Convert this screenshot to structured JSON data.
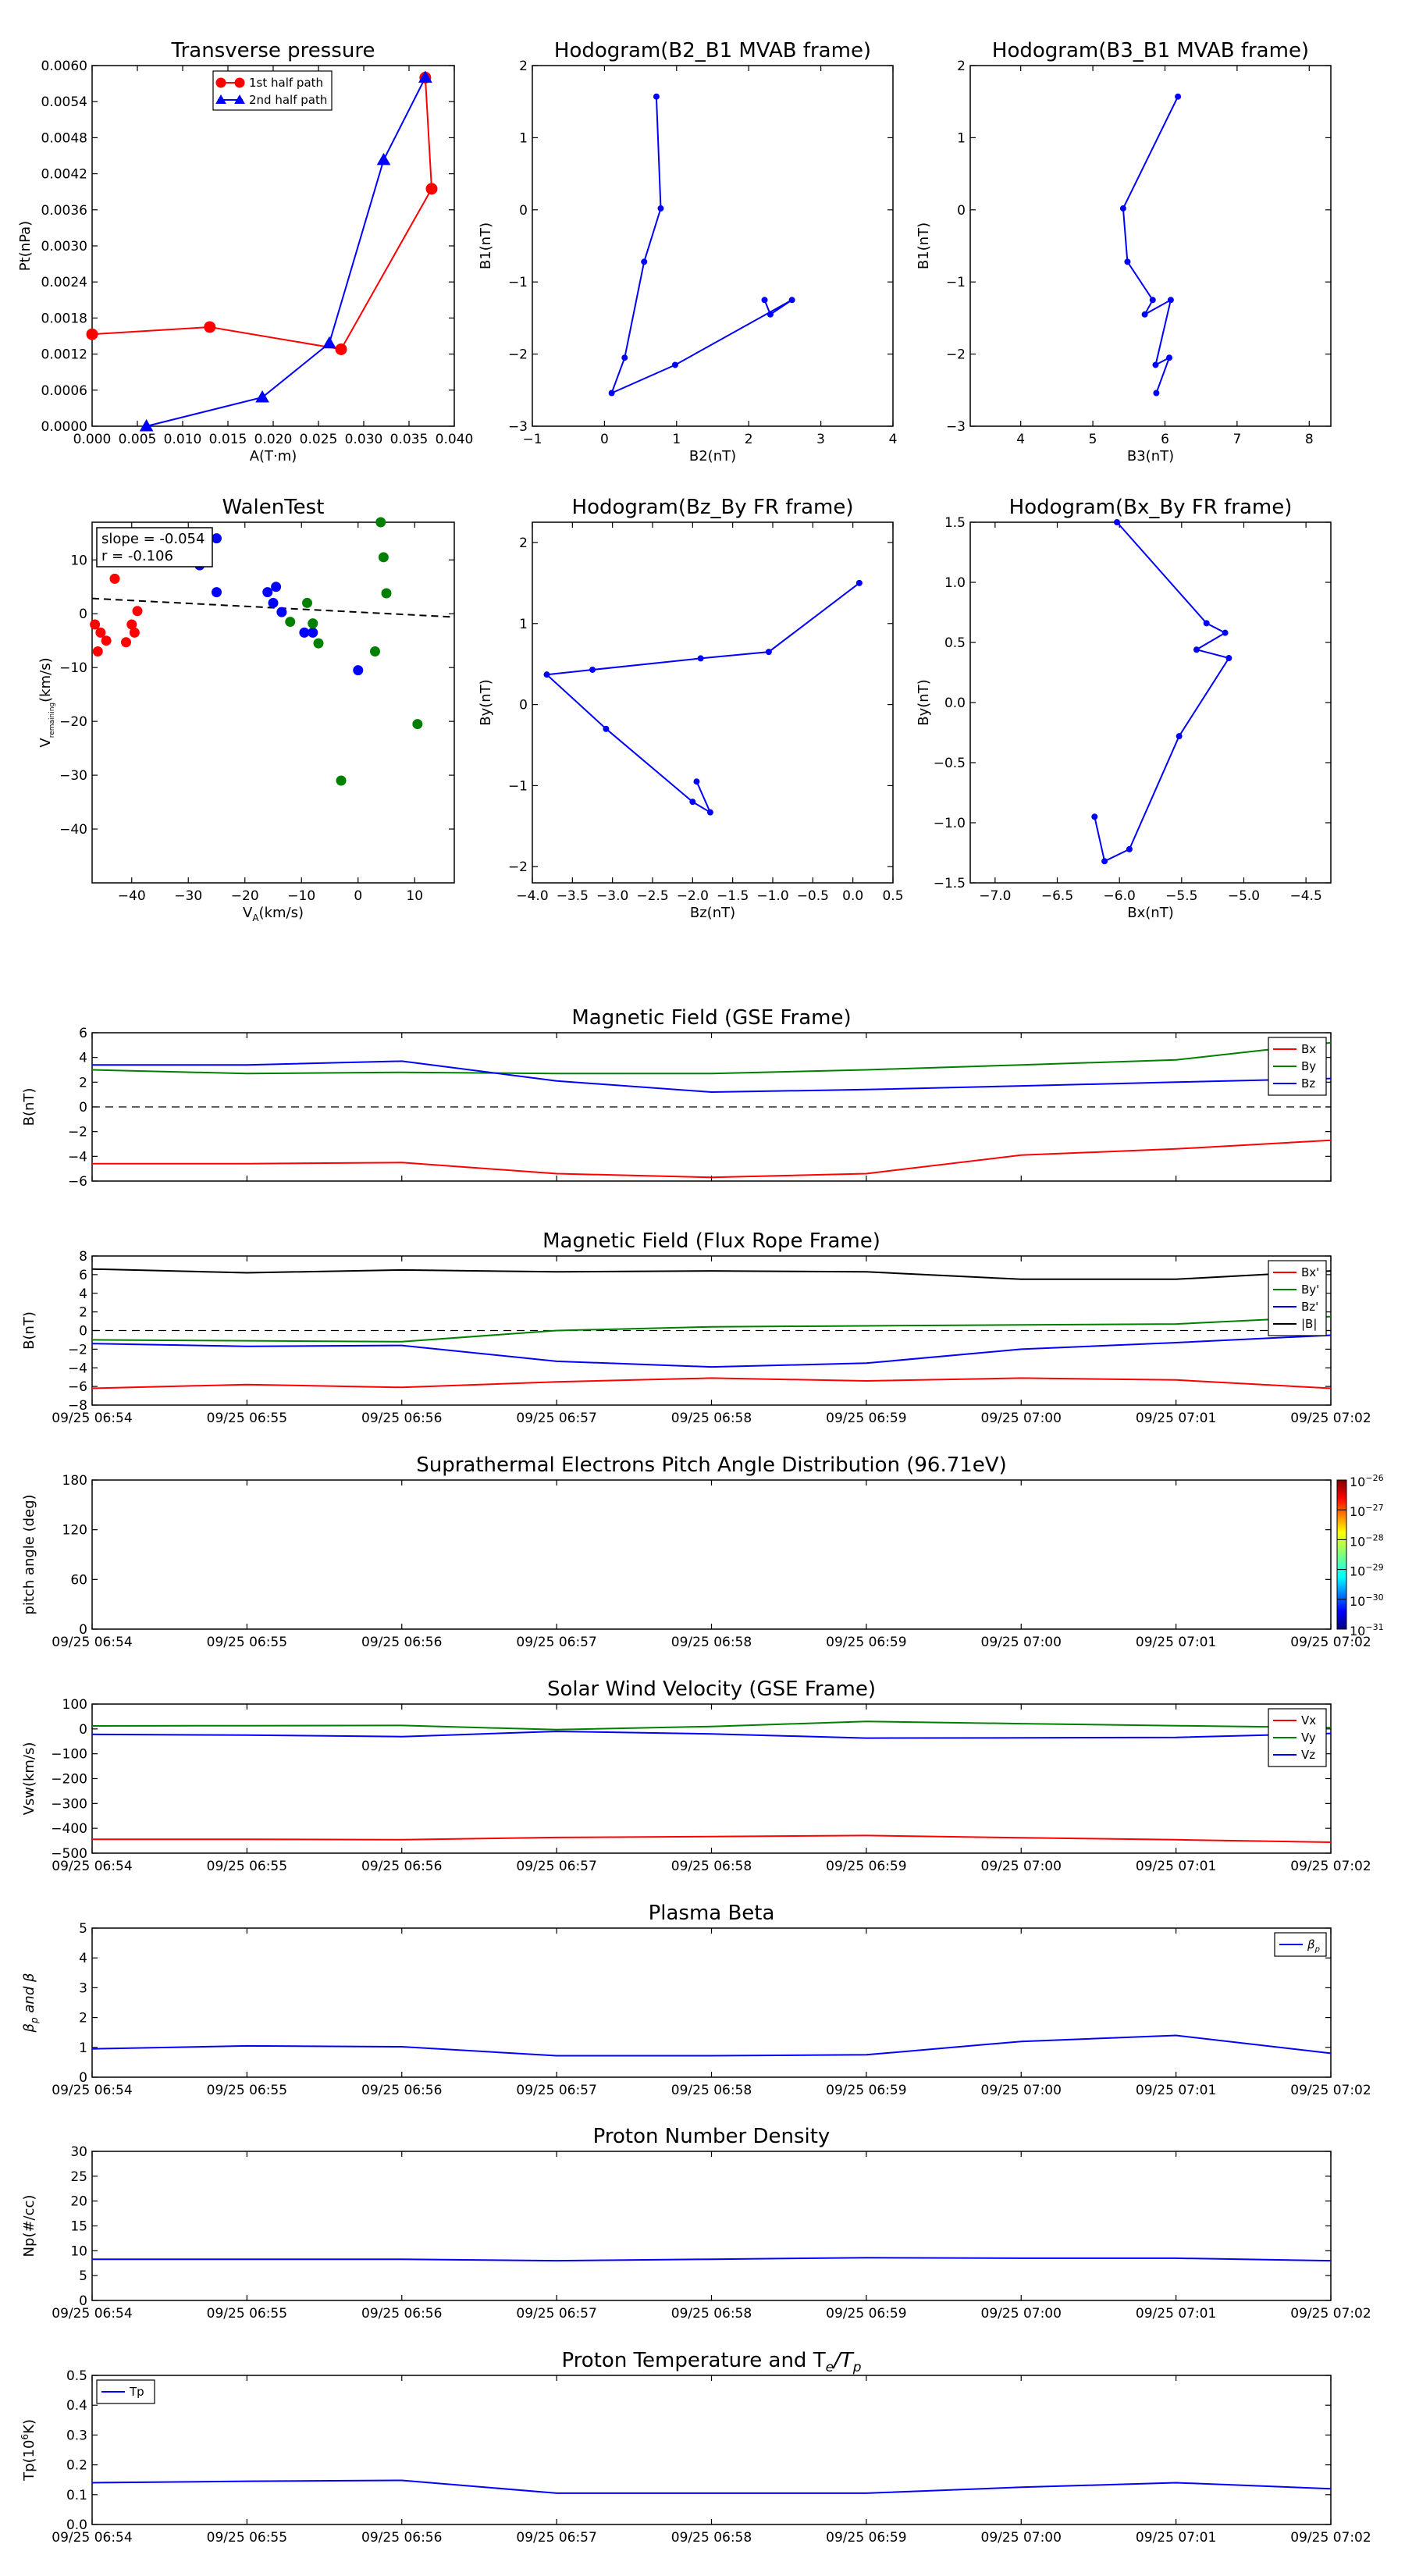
{
  "figure": {
    "background": "#ffffff"
  },
  "chart_data": [
    {
      "id": "pt",
      "type": "line",
      "title": "Transverse pressure",
      "xlabel": "A(T·m)",
      "ylabel": "Pt(nPa)",
      "xlim": [
        0,
        0.04
      ],
      "ylim": [
        0,
        0.006
      ],
      "xticks": [
        "0.000",
        "0.005",
        "0.010",
        "0.015",
        "0.020",
        "0.025",
        "0.030",
        "0.035",
        "0.040"
      ],
      "xtick_values": [
        0,
        0.005,
        0.01,
        0.015,
        0.02,
        0.025,
        0.03,
        0.035,
        0.04
      ],
      "yticks": [
        "0.0000",
        "0.0006",
        "0.0012",
        "0.0018",
        "0.0024",
        "0.0030",
        "0.0036",
        "0.0042",
        "0.0048",
        "0.0054",
        "0.0060"
      ],
      "ytick_values": [
        0,
        0.0006,
        0.0012,
        0.0018,
        0.0024,
        0.003,
        0.0036,
        0.0042,
        0.0048,
        0.0054,
        0.006
      ],
      "legend_position": "top-center",
      "series": [
        {
          "name": "1st half path",
          "color": "#ff0000",
          "marker": "circle",
          "x": [
            0.0,
            0.013,
            0.0275,
            0.0375,
            0.0368
          ],
          "y": [
            0.00153,
            0.00165,
            0.00128,
            0.00395,
            0.0058
          ]
        },
        {
          "name": "2nd half path",
          "color": "#0000ff",
          "marker": "triangle",
          "x": [
            0.0368,
            0.0322,
            0.0262,
            0.0188,
            0.006
          ],
          "y": [
            0.0058,
            0.00443,
            0.00138,
            0.00048,
            0.0
          ]
        }
      ]
    },
    {
      "id": "h1",
      "type": "line",
      "title": "Hodogram(B2_B1 MVAB frame)",
      "xlabel": "B2(nT)",
      "ylabel": "B1(nT)",
      "xlim": [
        -1,
        4
      ],
      "ylim": [
        -3,
        2
      ],
      "xticks": [
        "−1",
        "0",
        "1",
        "2",
        "3",
        "4"
      ],
      "xtick_values": [
        -1,
        0,
        1,
        2,
        3,
        4
      ],
      "yticks": [
        "−3",
        "−2",
        "−1",
        "0",
        "1",
        "2"
      ],
      "ytick_values": [
        -3,
        -2,
        -1,
        0,
        1,
        2
      ],
      "series": [
        {
          "color": "#0000ff",
          "marker": "dot",
          "x": [
            0.72,
            0.78,
            0.55,
            0.28,
            0.1,
            0.98,
            2.6,
            2.3,
            2.22
          ],
          "y": [
            1.57,
            0.02,
            -0.72,
            -2.05,
            -2.54,
            -2.15,
            -1.25,
            -1.45,
            -1.25
          ]
        }
      ]
    },
    {
      "id": "h2",
      "type": "line",
      "title": "Hodogram(B3_B1 MVAB frame)",
      "xlabel": "B3(nT)",
      "ylabel": "B1(nT)",
      "xlim": [
        3.3,
        8.3
      ],
      "ylim": [
        -3,
        2
      ],
      "xticks": [
        "4",
        "5",
        "6",
        "7",
        "8"
      ],
      "xtick_values": [
        4,
        5,
        6,
        7,
        8
      ],
      "yticks": [
        "−3",
        "−2",
        "−1",
        "0",
        "1",
        "2"
      ],
      "ytick_values": [
        -3,
        -2,
        -1,
        0,
        1,
        2
      ],
      "series": [
        {
          "color": "#0000ff",
          "marker": "dot",
          "x": [
            6.18,
            5.42,
            5.48,
            5.83,
            5.72,
            6.08,
            5.87,
            6.06,
            5.88
          ],
          "y": [
            1.57,
            0.02,
            -0.72,
            -1.25,
            -1.45,
            -1.25,
            -2.15,
            -2.05,
            -2.54
          ]
        }
      ]
    },
    {
      "id": "walen",
      "type": "scatter",
      "title": "WalenTest",
      "xlabel_prefix": "V",
      "xlabel_sub": "A",
      "xlabel_suffix": "(km/s)",
      "ylabel_prefix": "V",
      "ylabel_sub": "remaining",
      "ylabel_suffix": "(km/s)",
      "xlim": [
        -47,
        17
      ],
      "ylim": [
        -50,
        17
      ],
      "xticks": [
        "−40",
        "−30",
        "−20",
        "−10",
        "0",
        "10"
      ],
      "xtick_values": [
        -40,
        -30,
        -20,
        -10,
        0,
        10
      ],
      "yticks": [
        "−40",
        "−30",
        "−20",
        "−10",
        "0",
        "10"
      ],
      "ytick_values": [
        -40,
        -30,
        -20,
        -10,
        0,
        10
      ],
      "annotation": [
        "slope = -0.054",
        "r = -0.106"
      ],
      "fit": {
        "slope": -0.054,
        "intercept": 0.3,
        "color": "#000000",
        "style": "dashed"
      },
      "series": [
        {
          "color": "#ff0000",
          "x": [
            -46.5,
            -46,
            -45.5,
            -44.5,
            -43,
            -41,
            -40,
            -39.5,
            -39
          ],
          "y": [
            -2.0,
            -7.0,
            -3.5,
            -5.0,
            6.5,
            -5.3,
            -2.0,
            -3.5,
            0.5
          ]
        },
        {
          "color": "#0000ff",
          "x": [
            -33,
            -28,
            -25,
            -25,
            -16,
            -15,
            -14.5,
            -13.5,
            -9.5,
            -8,
            0
          ],
          "y": [
            12.5,
            9.0,
            14.0,
            4.0,
            4.0,
            2.0,
            5.0,
            0.3,
            -3.5,
            -3.5,
            -10.5
          ]
        },
        {
          "color": "#008000",
          "x": [
            4,
            4.5,
            5,
            3,
            -7,
            -9,
            -12,
            -8,
            -3,
            10.5
          ],
          "y": [
            17.0,
            10.5,
            3.8,
            -7.0,
            -5.5,
            2.0,
            -1.5,
            -1.8,
            -31.0,
            -20.5
          ]
        }
      ]
    },
    {
      "id": "h3",
      "type": "line",
      "title": "Hodogram(Bz_By FR frame)",
      "xlabel": "Bz(nT)",
      "ylabel": "By(nT)",
      "xlim": [
        -4.0,
        0.5
      ],
      "ylim": [
        -2.2,
        2.25
      ],
      "xticks": [
        "−4.0",
        "−3.5",
        "−3.0",
        "−2.5",
        "−2.0",
        "−1.5",
        "−1.0",
        "−0.5",
        "0.0",
        "0.5"
      ],
      "xtick_values": [
        -4.0,
        -3.5,
        -3.0,
        -2.5,
        -2.0,
        -1.5,
        -1.0,
        -0.5,
        0.0,
        0.5
      ],
      "yticks": [
        "−2",
        "−1",
        "0",
        "1",
        "2"
      ],
      "ytick_values": [
        -2,
        -1,
        0,
        1,
        2
      ],
      "series": [
        {
          "color": "#0000ff",
          "marker": "dot",
          "x": [
            0.08,
            -1.05,
            -1.9,
            -3.25,
            -3.82,
            -3.08,
            -2.0,
            -1.78,
            -1.95
          ],
          "y": [
            1.5,
            0.65,
            0.57,
            0.43,
            0.37,
            -0.3,
            -1.2,
            -1.33,
            -0.95
          ]
        }
      ]
    },
    {
      "id": "h4",
      "type": "line",
      "title": "Hodogram(Bx_By FR frame)",
      "xlabel": "Bx(nT)",
      "ylabel": "By(nT)",
      "xlim": [
        -7.2,
        -4.3
      ],
      "ylim": [
        -1.5,
        1.5
      ],
      "xticks": [
        "−7.0",
        "−6.5",
        "−6.0",
        "−5.5",
        "−5.0",
        "−4.5"
      ],
      "xtick_values": [
        -7.0,
        -6.5,
        -6.0,
        -5.5,
        -5.0,
        -4.5
      ],
      "yticks": [
        "−1.5",
        "−1.0",
        "−0.5",
        "0.0",
        "0.5",
        "1.0",
        "1.5"
      ],
      "ytick_values": [
        -1.5,
        -1.0,
        -0.5,
        0.0,
        0.5,
        1.0,
        1.5
      ],
      "series": [
        {
          "color": "#0000ff",
          "marker": "dot",
          "x": [
            -6.02,
            -5.3,
            -5.15,
            -5.38,
            -5.12,
            -5.52,
            -5.92,
            -6.12,
            -6.2
          ],
          "y": [
            1.5,
            0.66,
            0.58,
            0.44,
            0.37,
            -0.28,
            -1.22,
            -1.32,
            -0.95
          ]
        }
      ]
    }
  ],
  "time_axis": {
    "labels": [
      "09/25 06:54",
      "09/25 06:55",
      "09/25 06:56",
      "09/25 06:57",
      "09/25 06:58",
      "09/25 06:59",
      "09/25 07:00",
      "09/25 07:01",
      "09/25 07:02"
    ],
    "values": [
      0,
      1,
      2,
      3,
      4,
      5,
      6,
      7,
      8
    ],
    "data_x": [
      0,
      1,
      2,
      3,
      4,
      5,
      6,
      7,
      8
    ]
  },
  "time_panels": [
    {
      "id": "mag_gse",
      "type": "line",
      "title": "Magnetic Field (GSE Frame)",
      "ylabel": "B(nT)",
      "ylim": [
        -6,
        6
      ],
      "yticks": [
        "−6",
        "−4",
        "−2",
        "0",
        "2",
        "4",
        "6"
      ],
      "ytick_values": [
        -6,
        -4,
        -2,
        0,
        2,
        4,
        6
      ],
      "show_xticklabels": false,
      "zero_line": true,
      "legend_position": "top-right",
      "series": [
        {
          "name": "Bx",
          "color": "#ff0000",
          "y": [
            -4.6,
            -4.6,
            -4.5,
            -5.4,
            -5.7,
            -5.4,
            -3.9,
            -3.4,
            -2.7
          ]
        },
        {
          "name": "By",
          "color": "#008000",
          "y": [
            3.0,
            2.7,
            2.8,
            2.7,
            2.7,
            3.0,
            3.4,
            3.8,
            5.2
          ]
        },
        {
          "name": "Bz",
          "color": "#0000ff",
          "y": [
            3.4,
            3.4,
            3.7,
            2.1,
            1.2,
            1.4,
            1.7,
            2.0,
            2.3
          ]
        }
      ]
    },
    {
      "id": "mag_fr",
      "type": "line",
      "title": "Magnetic Field (Flux Rope Frame)",
      "ylabel": "B(nT)",
      "ylim": [
        -8,
        8
      ],
      "yticks": [
        "−8",
        "−6",
        "−4",
        "−2",
        "0",
        "2",
        "4",
        "6",
        "8"
      ],
      "ytick_values": [
        -8,
        -6,
        -4,
        -2,
        0,
        2,
        4,
        6,
        8
      ],
      "show_xticklabels": true,
      "zero_line": true,
      "legend_position": "top-right",
      "series": [
        {
          "name": "Bx'",
          "color": "#ff0000",
          "y": [
            -6.2,
            -5.8,
            -6.1,
            -5.5,
            -5.1,
            -5.4,
            -5.1,
            -5.3,
            -6.2
          ]
        },
        {
          "name": "By'",
          "color": "#008000",
          "y": [
            -1.0,
            -1.1,
            -1.2,
            0.0,
            0.4,
            0.5,
            0.6,
            0.7,
            1.5
          ]
        },
        {
          "name": "Bz'",
          "color": "#0000ff",
          "y": [
            -1.4,
            -1.7,
            -1.6,
            -3.3,
            -3.9,
            -3.5,
            -2.0,
            -1.3,
            -0.5
          ]
        },
        {
          "name": "|B|",
          "color": "#000000",
          "y": [
            6.6,
            6.2,
            6.5,
            6.3,
            6.4,
            6.3,
            5.5,
            5.5,
            6.4
          ]
        }
      ]
    },
    {
      "id": "pad",
      "type": "heatmap",
      "title": "Suprathermal Electrons Pitch Angle Distribution (96.71eV)",
      "ylabel": "pitch angle (deg)",
      "ylim": [
        0,
        180
      ],
      "yticks": [
        "0",
        "60",
        "120",
        "180"
      ],
      "ytick_values": [
        0,
        60,
        120,
        180
      ],
      "show_xticklabels": true,
      "colorbar": {
        "labels": [
          "−26",
          "−27",
          "−28",
          "−29",
          "−30",
          "−31"
        ],
        "base": "10"
      },
      "series": []
    },
    {
      "id": "vsw",
      "type": "line",
      "title": "Solar Wind Velocity (GSE Frame)",
      "ylabel": "Vsw(km/s)",
      "ylim": [
        -500,
        100
      ],
      "yticks": [
        "−500",
        "−400",
        "−300",
        "−200",
        "−100",
        "0",
        "100"
      ],
      "ytick_values": [
        -500,
        -400,
        -300,
        -200,
        -100,
        0,
        100
      ],
      "show_xticklabels": true,
      "zero_line": false,
      "legend_position": "top-right",
      "series": [
        {
          "name": "Vx",
          "color": "#ff0000",
          "y": [
            -444,
            -444,
            -446,
            -437,
            -433,
            -429,
            -438,
            -446,
            -456
          ]
        },
        {
          "name": "Vy",
          "color": "#008000",
          "y": [
            12,
            13,
            14,
            -3,
            10,
            30,
            21,
            13,
            5
          ]
        },
        {
          "name": "Vz",
          "color": "#0000ff",
          "y": [
            -22,
            -25,
            -31,
            -10,
            -20,
            -37,
            -36,
            -34,
            -18
          ]
        }
      ]
    },
    {
      "id": "beta",
      "type": "line",
      "title": "Plasma Beta",
      "ylabel": "β",
      "ylabel_parts": [
        "β",
        "p",
        " and β"
      ],
      "ylim": [
        0,
        5
      ],
      "yticks": [
        "0",
        "1",
        "2",
        "3",
        "4",
        "5"
      ],
      "ytick_values": [
        0,
        1,
        2,
        3,
        4,
        5
      ],
      "show_xticklabels": true,
      "zero_line": false,
      "legend_position": "top-right",
      "series": [
        {
          "name": "β",
          "name_sub": "p",
          "color": "#0000ff",
          "y": [
            0.95,
            1.05,
            1.02,
            0.72,
            0.72,
            0.75,
            1.2,
            1.4,
            0.8
          ]
        }
      ]
    },
    {
      "id": "np",
      "type": "line",
      "title": "Proton Number Density",
      "ylabel": "Np(#/cc)",
      "ylim": [
        0,
        30
      ],
      "yticks": [
        "0",
        "5",
        "10",
        "15",
        "20",
        "25",
        "30"
      ],
      "ytick_values": [
        0,
        5,
        10,
        15,
        20,
        25,
        30
      ],
      "show_xticklabels": true,
      "zero_line": false,
      "series": [
        {
          "color": "#0000ff",
          "y": [
            8.3,
            8.3,
            8.3,
            8.0,
            8.3,
            8.6,
            8.5,
            8.5,
            8.0
          ]
        }
      ]
    },
    {
      "id": "tp",
      "type": "line",
      "title": "Proton Temperature and T",
      "title_math": [
        "T",
        "e",
        "/T",
        "p"
      ],
      "ylabel": "Tp",
      "ylabel_parts": [
        "Tp(10",
        "6",
        "K)"
      ],
      "ylim": [
        0,
        0.5
      ],
      "yticks": [
        "0.0",
        "0.1",
        "0.2",
        "0.3",
        "0.4",
        "0.5"
      ],
      "ytick_values": [
        0,
        0.1,
        0.2,
        0.3,
        0.4,
        0.5
      ],
      "show_xticklabels": true,
      "zero_line": false,
      "legend_position": "top-left",
      "series": [
        {
          "name": "Tp",
          "color": "#0000ff",
          "y": [
            0.14,
            0.145,
            0.148,
            0.105,
            0.105,
            0.105,
            0.125,
            0.14,
            0.12
          ]
        }
      ]
    }
  ]
}
